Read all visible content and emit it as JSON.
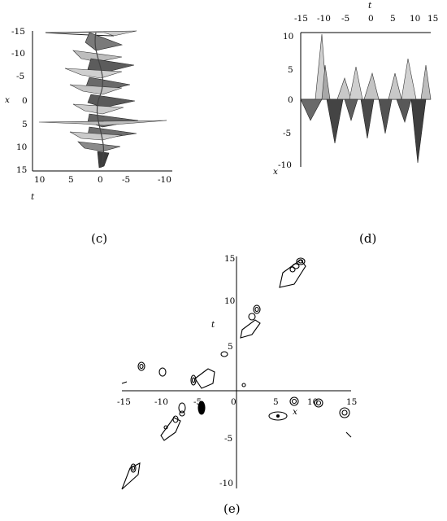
{
  "panels": [
    {
      "id": "c",
      "caption": "(c)",
      "axis_vertical_label": "x",
      "axis_horizontal_label": "t",
      "vertical_ticks": [
        "-15",
        "-10",
        "-5",
        "0",
        "5",
        "10",
        "15"
      ],
      "horizontal_ticks": [
        "10",
        "5",
        "0",
        "-5",
        "-10"
      ]
    },
    {
      "id": "d",
      "caption": "(d)",
      "axis_top_label": "t",
      "axis_side_label": "x",
      "top_ticks": [
        "-15",
        "-10",
        "-5",
        "0",
        "5",
        "10",
        "15"
      ],
      "side_ticks": [
        "10",
        "5",
        "0",
        "-5",
        "-10"
      ]
    },
    {
      "id": "e",
      "caption": "(e)",
      "axis_x_label": "x",
      "axis_y_label": "t",
      "x_ticks": [
        "-15",
        "-10",
        "-5",
        "0",
        "5",
        "10",
        "15"
      ],
      "y_ticks": [
        "15",
        "10",
        "5",
        "-5",
        "-10"
      ]
    }
  ]
}
